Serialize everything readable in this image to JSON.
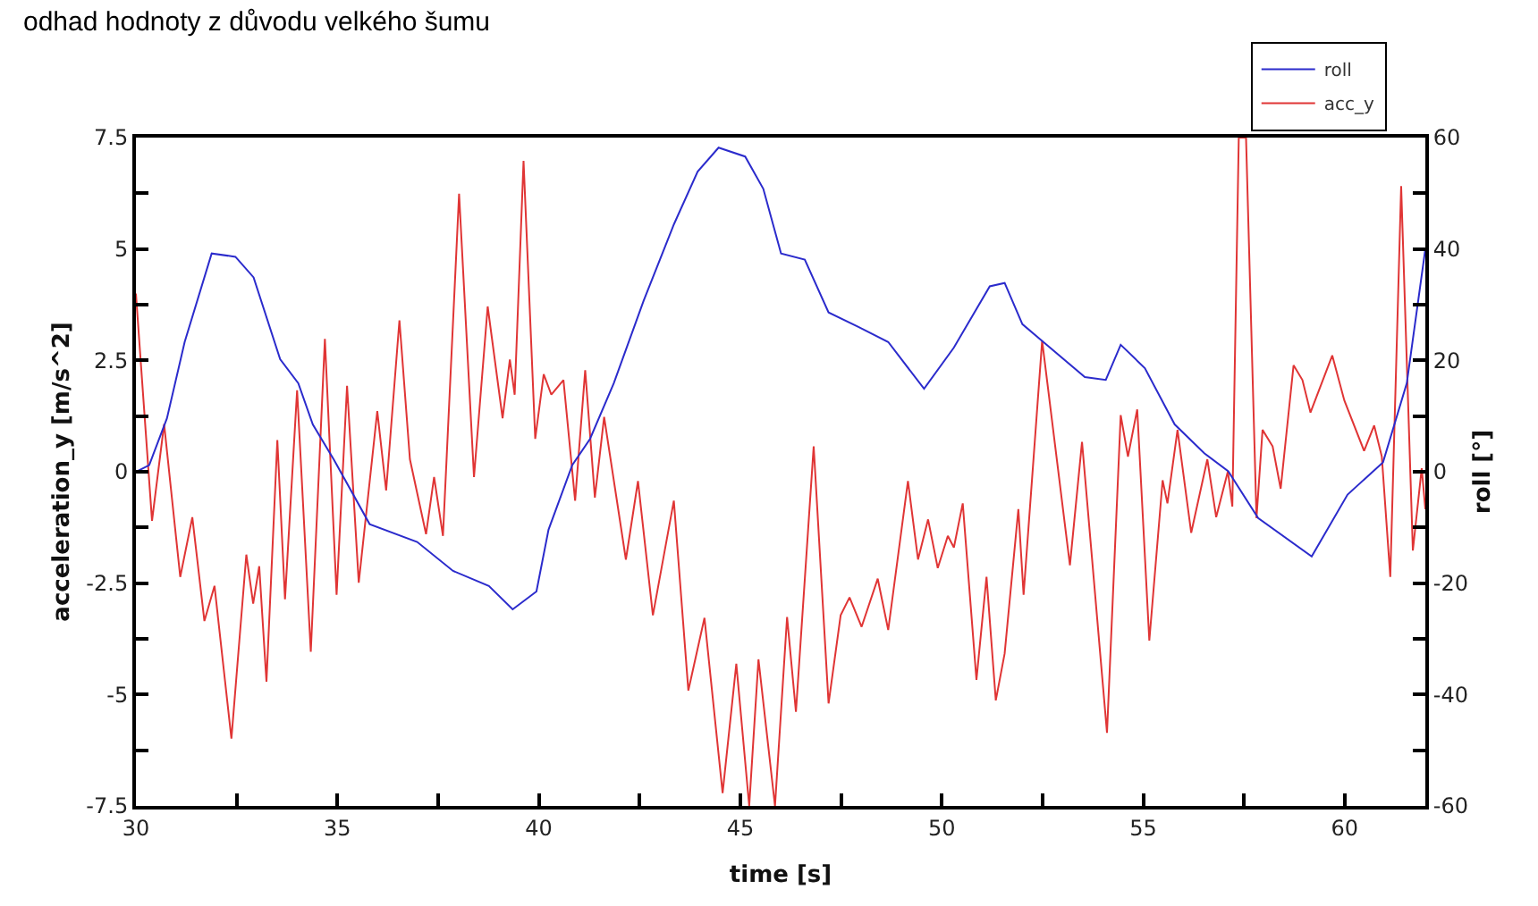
{
  "chart_data": {
    "type": "line",
    "title": "odhad hodnoty z důvodu velkého šumu",
    "xlabel": "time [s]",
    "ylabel": "acceleration_y [m/s^2]",
    "y2label": "roll [°]",
    "xlim": [
      30,
      62
    ],
    "xticks": [
      30,
      {
        "value": 32.5,
        "label": null
      },
      35,
      {
        "value": 37.5,
        "label": null
      },
      40,
      {
        "value": 42.5,
        "label": null
      },
      45,
      {
        "value": 47.5,
        "label": null
      },
      50,
      {
        "value": 52.5,
        "label": null
      },
      55,
      {
        "value": 57.5,
        "label": null
      },
      60
    ],
    "ylim": [
      -7.5,
      7.5
    ],
    "yticks": [
      -7.5,
      {
        "value": -6.25,
        "label": null
      },
      -5,
      {
        "value": -3.75,
        "label": null
      },
      -2.5,
      {
        "value": -1.25,
        "label": null
      },
      0,
      {
        "value": 1.25,
        "label": null
      },
      2.5,
      {
        "value": 3.75,
        "label": null
      },
      5,
      {
        "value": 6.25,
        "label": null
      },
      7.5
    ],
    "y2lim": [
      -60,
      60
    ],
    "y2ticks": [
      -60,
      {
        "value": -50,
        "label": null
      },
      -40,
      {
        "value": -30,
        "label": null
      },
      -20,
      {
        "value": -10,
        "label": null
      },
      0,
      {
        "value": 10,
        "label": null
      },
      20,
      {
        "value": 30,
        "label": null
      },
      40,
      {
        "value": 50,
        "label": null
      },
      60
    ],
    "legend": "top right",
    "marker": "none",
    "line_style": "solid",
    "series": [
      {
        "name": "roll",
        "color": "#2b2bcc",
        "axis": "y2",
        "x": [
          30,
          30.33,
          30.77,
          31.21,
          31.88,
          32.47,
          32.92,
          33.58,
          34.03,
          34.39,
          34.91,
          35.8,
          36.98,
          37.87,
          38.76,
          39.35,
          39.94,
          40.24,
          40.83,
          41.27,
          41.86,
          42.6,
          43.35,
          43.94,
          44.46,
          45.12,
          45.57,
          46.01,
          46.6,
          47.19,
          47.93,
          48.67,
          49.56,
          50.3,
          51.19,
          51.56,
          52.0,
          52.52,
          53.55,
          54.07,
          54.44,
          55.04,
          55.78,
          56.52,
          57.11,
          57.85,
          59.18,
          60.07,
          60.95,
          61.54,
          62
        ],
        "values": [
          0,
          1.2,
          9.6,
          23.3,
          39.2,
          38.6,
          34.9,
          20.2,
          15.9,
          8.5,
          2.2,
          -9.4,
          -12.6,
          -17.8,
          -20.5,
          -24.7,
          -21.5,
          -10.4,
          1.2,
          5.9,
          15.9,
          30.7,
          44.4,
          53.9,
          58.2,
          56.6,
          50.8,
          39.2,
          38.1,
          28.6,
          26,
          23.3,
          14.9,
          22.3,
          33.3,
          33.9,
          26.5,
          23.3,
          17,
          16.5,
          22.8,
          18.6,
          8.5,
          3.3,
          0.1,
          -8.3,
          -15.2,
          -4.1,
          1.7,
          15.9,
          40
        ]
      },
      {
        "name": "acc_y",
        "color": "#e03535",
        "x": [
          30,
          30.4,
          30.7,
          31.1,
          31.4,
          31.7,
          31.95,
          32.37,
          32.74,
          32.91,
          33.06,
          33.24,
          33.51,
          33.7,
          34.0,
          34.34,
          34.69,
          34.98,
          35.24,
          35.53,
          35.99,
          36.21,
          36.54,
          36.8,
          37.2,
          37.4,
          37.62,
          38.02,
          38.39,
          38.73,
          39.1,
          39.28,
          39.4,
          39.62,
          39.91,
          40.12,
          40.31,
          40.61,
          40.9,
          41.15,
          41.39,
          41.62,
          42.16,
          42.46,
          42.83,
          43.35,
          43.71,
          44.11,
          44.56,
          44.9,
          45.22,
          45.45,
          45.86,
          46.16,
          46.38,
          46.82,
          47.19,
          47.49,
          47.71,
          48.01,
          48.41,
          48.67,
          49.16,
          49.41,
          49.66,
          49.9,
          50.15,
          50.3,
          50.52,
          50.86,
          51.11,
          51.34,
          51.56,
          51.9,
          52.03,
          52.49,
          53.18,
          53.48,
          54.1,
          54.44,
          54.62,
          54.85,
          55.15,
          55.48,
          55.6,
          55.85,
          56.19,
          56.59,
          56.81,
          57.1,
          57.21,
          57.37,
          57.55,
          57.81,
          57.96,
          58.21,
          58.41,
          58.73,
          58.95,
          59.15,
          59.69,
          59.99,
          60.48,
          60.73,
          60.92,
          61.13,
          61.4,
          61.69,
          61.91,
          62.0
        ],
        "values": [
          4.0,
          -1.1,
          1.07,
          -2.36,
          -1.02,
          -3.35,
          -2.56,
          -5.99,
          -1.86,
          -2.96,
          -2.12,
          -4.71,
          0.71,
          -2.86,
          1.83,
          -4.04,
          2.98,
          -2.76,
          1.93,
          -2.49,
          1.36,
          -0.42,
          3.4,
          0.28,
          -1.4,
          -0.12,
          -1.44,
          6.24,
          -0.12,
          3.71,
          1.2,
          2.52,
          1.73,
          6.98,
          0.74,
          2.19,
          1.73,
          2.06,
          -0.65,
          2.28,
          -0.58,
          1.23,
          -1.97,
          -0.21,
          -3.22,
          -0.65,
          -4.91,
          -3.28,
          -7.21,
          -4.31,
          -7.5,
          -4.21,
          -7.5,
          -3.26,
          -5.39,
          0.57,
          -5.2,
          -3.22,
          -2.82,
          -3.48,
          -2.4,
          -3.55,
          -0.21,
          -1.97,
          -1.07,
          -2.16,
          -1.44,
          -1.7,
          -0.71,
          -4.67,
          -2.36,
          -5.13,
          -4.08,
          -0.84,
          -2.76,
          2.94,
          -2.1,
          0.67,
          -5.86,
          1.27,
          0.34,
          1.4,
          -3.79,
          -0.19,
          -0.71,
          0.94,
          -1.37,
          0.28,
          -1.02,
          0.01,
          -0.78,
          7.5,
          7.5,
          -1.04,
          0.94,
          0.57,
          -0.38,
          2.39,
          2.06,
          1.33,
          2.61,
          1.6,
          0.47,
          1.04,
          0.34,
          -2.36,
          6.41,
          -1.77,
          0.08,
          -0.84
        ]
      }
    ]
  }
}
